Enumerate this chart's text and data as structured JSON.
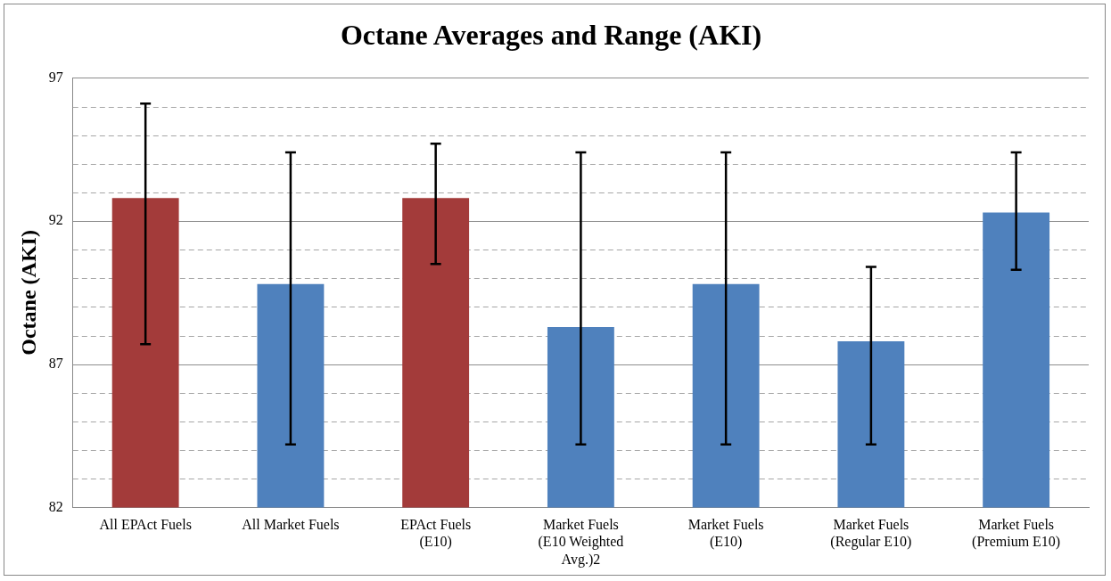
{
  "chart_data": {
    "type": "bar",
    "title": "Octane Averages and Range (AKI)",
    "ylabel": "Octane (AKI)",
    "categories": [
      "All EPAct Fuels",
      "All Market Fuels",
      "EPAct Fuels (E10)",
      "Market Fuels (E10 Weighted Avg.)2",
      "Market Fuels (E10)",
      "Market Fuels (Regular E10)",
      "Market Fuels (Premium E10)"
    ],
    "values": [
      92.8,
      89.8,
      92.8,
      88.3,
      89.8,
      87.8,
      92.3
    ],
    "colors": [
      "#a33b3a",
      "#4f81bd",
      "#a33b3a",
      "#4f81bd",
      "#4f81bd",
      "#4f81bd",
      "#4f81bd"
    ],
    "errors": [
      [
        87.7,
        96.1
      ],
      [
        84.2,
        94.4
      ],
      [
        90.5,
        94.7
      ],
      [
        84.2,
        94.4
      ],
      [
        84.2,
        94.4
      ],
      [
        84.2,
        90.4
      ],
      [
        90.3,
        94.4
      ]
    ],
    "ylim": [
      82,
      97
    ],
    "yticks": [
      82,
      {
        "value": 83,
        "label": null
      },
      {
        "value": 84,
        "label": null
      },
      {
        "value": 85,
        "label": null
      },
      {
        "value": 86,
        "label": null
      },
      87,
      {
        "value": 88,
        "label": null
      },
      {
        "value": 89,
        "label": null
      },
      {
        "value": 90,
        "label": null
      },
      {
        "value": 91,
        "label": null
      },
      92,
      {
        "value": 93,
        "label": null
      },
      {
        "value": 94,
        "label": null
      },
      {
        "value": 95,
        "label": null
      },
      {
        "value": 96,
        "label": null
      },
      97
    ],
    "grid": "y",
    "legend": false
  }
}
